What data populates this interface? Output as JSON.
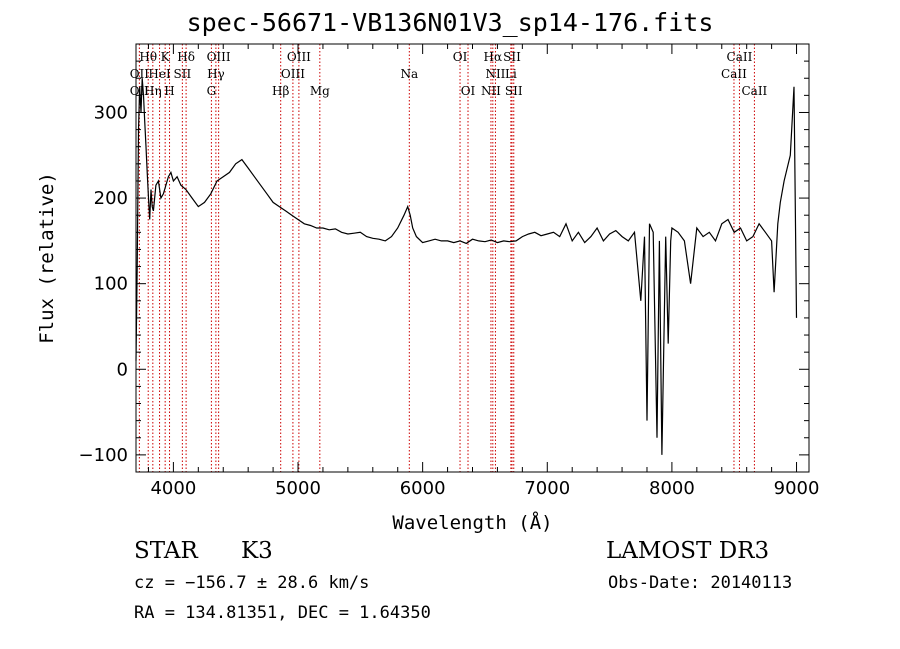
{
  "title": "spec-56671-VB136N01V3_sp14-176.fits",
  "footer": {
    "class_label": "STAR",
    "subclass": "K3",
    "survey": "LAMOST DR3",
    "cz": "cz = −156.7 ± 28.6 km/s",
    "obs_date": "Obs-Date: 20140113",
    "radec": "RA = 134.81351, DEC =   1.64350"
  },
  "chart_data": {
    "type": "line",
    "title": "spec-56671-VB136N01V3_sp14-176.fits",
    "xlabel": "Wavelength (Å)",
    "ylabel": "Flux (relative)",
    "xlim": [
      3700,
      9100
    ],
    "ylim": [
      -120,
      380
    ],
    "xticks": [
      4000,
      5000,
      6000,
      7000,
      8000,
      9000
    ],
    "yticks": [
      -100,
      0,
      100,
      200,
      300
    ],
    "line_color": "#000000",
    "marker_color": "#cc0000",
    "series": [
      {
        "x": [
          3700,
          3710,
          3720,
          3730,
          3740,
          3750,
          3760,
          3770,
          3780,
          3790,
          3800,
          3810,
          3820,
          3830,
          3840,
          3860,
          3880,
          3900,
          3920,
          3940,
          3960,
          3980,
          4000,
          4030,
          4060,
          4100,
          4150,
          4200,
          4250,
          4300,
          4350,
          4400,
          4450,
          4500,
          4550,
          4600,
          4650,
          4700,
          4750,
          4800,
          4850,
          4900,
          4950,
          5000,
          5050,
          5100,
          5150,
          5200,
          5250,
          5300,
          5350,
          5400,
          5450,
          5500,
          5550,
          5600,
          5650,
          5700,
          5750,
          5800,
          5850,
          5880,
          5900,
          5920,
          5950,
          6000,
          6050,
          6100,
          6150,
          6200,
          6250,
          6300,
          6350,
          6400,
          6450,
          6500,
          6550,
          6600,
          6650,
          6700,
          6750,
          6800,
          6850,
          6900,
          6950,
          7000,
          7050,
          7100,
          7150,
          7200,
          7250,
          7300,
          7350,
          7400,
          7450,
          7500,
          7550,
          7600,
          7650,
          7700,
          7750,
          7780,
          7800,
          7820,
          7850,
          7880,
          7900,
          7920,
          7950,
          7970,
          7990,
          8000,
          8050,
          8100,
          8150,
          8200,
          8250,
          8300,
          8350,
          8400,
          8450,
          8500,
          8550,
          8600,
          8650,
          8700,
          8750,
          8800,
          8820,
          8850,
          8870,
          8900,
          8950,
          8980,
          9000
        ],
        "y": [
          10,
          120,
          280,
          330,
          300,
          340,
          320,
          290,
          260,
          230,
          200,
          175,
          210,
          190,
          185,
          215,
          220,
          200,
          205,
          215,
          225,
          230,
          220,
          225,
          215,
          210,
          200,
          190,
          195,
          205,
          220,
          225,
          230,
          240,
          245,
          235,
          225,
          215,
          205,
          195,
          190,
          185,
          180,
          175,
          170,
          168,
          165,
          165,
          163,
          164,
          160,
          158,
          159,
          160,
          155,
          153,
          152,
          150,
          155,
          165,
          180,
          190,
          180,
          165,
          155,
          148,
          150,
          152,
          150,
          150,
          148,
          150,
          147,
          152,
          150,
          149,
          151,
          148,
          150,
          149,
          150,
          155,
          158,
          160,
          156,
          158,
          160,
          155,
          170,
          150,
          160,
          148,
          155,
          165,
          150,
          158,
          162,
          155,
          150,
          160,
          80,
          155,
          -60,
          170,
          160,
          -80,
          150,
          -100,
          155,
          30,
          150,
          165,
          160,
          150,
          100,
          165,
          155,
          160,
          150,
          170,
          175,
          160,
          165,
          150,
          155,
          170,
          160,
          150,
          90,
          170,
          195,
          220,
          250,
          330,
          60
        ]
      }
    ],
    "lines_row1": [
      {
        "label": "Hθ",
        "x": 3798
      },
      {
        "label": "K",
        "x": 3934
      },
      {
        "label": "Hδ",
        "x": 4102
      },
      {
        "label": "OIII",
        "x": 4363
      },
      {
        "label": "OIII",
        "x": 5007
      },
      {
        "label": "OI",
        "x": 6300
      },
      {
        "label": "Hα",
        "x": 6563
      },
      {
        "label": "SII",
        "x": 6717
      },
      {
        "label": "CaII",
        "x": 8542
      }
    ],
    "lines_row2": [
      {
        "label": "OII",
        "x": 3727
      },
      {
        "label": "HeI",
        "x": 3889
      },
      {
        "label": "SII",
        "x": 4072
      },
      {
        "label": "Hγ",
        "x": 4341
      },
      {
        "label": "OIII",
        "x": 4959
      },
      {
        "label": "Na",
        "x": 5893
      },
      {
        "label": "NII",
        "x": 6584
      },
      {
        "label": "Li",
        "x": 6708
      },
      {
        "label": "CaII",
        "x": 8498
      }
    ],
    "lines_row3": [
      {
        "label": "OII",
        "x": 3727
      },
      {
        "label": "Hη",
        "x": 3835
      },
      {
        "label": "H",
        "x": 3969
      },
      {
        "label": "G",
        "x": 4305
      },
      {
        "label": "Hβ",
        "x": 4861
      },
      {
        "label": "Mg",
        "x": 5175
      },
      {
        "label": "OI",
        "x": 6364
      },
      {
        "label": "NII",
        "x": 6548
      },
      {
        "label": "SII",
        "x": 6731
      },
      {
        "label": "CaII",
        "x": 8662
      }
    ]
  }
}
